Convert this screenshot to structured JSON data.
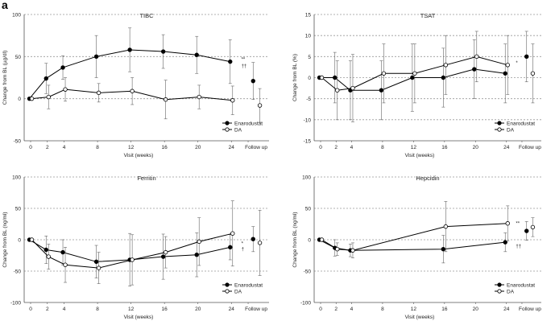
{
  "panel_label": "a",
  "chart_data": [
    {
      "type": "line",
      "title": "TIBC",
      "xlabel": "Visit (weeks)",
      "ylabel": "Change from BL (µg/dl)",
      "ylim": [
        -50,
        100
      ],
      "yticks": [
        -50,
        0,
        50,
        100
      ],
      "grid": "dashed-horizontal",
      "xtick_labels": [
        "0",
        "2",
        "4",
        "8",
        "12",
        "16",
        "20",
        "24",
        "Follow up"
      ],
      "xtick_values": [
        0,
        2,
        4,
        8,
        12,
        16,
        20,
        24,
        26
      ],
      "legend": [
        "Enarodustat",
        "DA"
      ],
      "legend_position": "bottom-right",
      "series": [
        {
          "name": "Enarodustat",
          "marker": "filled",
          "points": [
            [
              0,
              0
            ],
            [
              2,
              24
            ],
            [
              4,
              37
            ],
            [
              8,
              50
            ],
            [
              12,
              58
            ],
            [
              16,
              56
            ],
            [
              20,
              52
            ],
            [
              24,
              44
            ]
          ],
          "errors": [
            0,
            18,
            14,
            25,
            26,
            20,
            22,
            26
          ],
          "followup": {
            "x": 26.6,
            "y": 21,
            "err": 22
          }
        },
        {
          "name": "DA",
          "marker": "open",
          "points": [
            [
              0,
              0
            ],
            [
              2,
              2
            ],
            [
              4,
              11
            ],
            [
              8,
              7
            ],
            [
              12,
              9
            ],
            [
              16,
              -1
            ],
            [
              20,
              2
            ],
            [
              24,
              -2
            ]
          ],
          "errors": [
            0,
            14,
            14,
            11,
            16,
            23,
            14,
            17
          ],
          "followup": {
            "x": 27.4,
            "y": -8,
            "err": 20
          }
        }
      ],
      "annotations": [
        {
          "text": "**",
          "x": 24.8,
          "y": 47
        },
        {
          "text": "††",
          "x": 24.8,
          "y": 39
        }
      ]
    },
    {
      "type": "line",
      "title": "TSAT",
      "xlabel": "Visit (weeks)",
      "ylabel": "Change from BL (%)",
      "ylim": [
        -15,
        15
      ],
      "yticks": [
        -15,
        -10,
        -5,
        0,
        5,
        10,
        15
      ],
      "grid": "dashed-horizontal",
      "xtick_labels": [
        "0",
        "2",
        "4",
        "8",
        "12",
        "16",
        "20",
        "24",
        "Follow up"
      ],
      "xtick_values": [
        0,
        2,
        4,
        8,
        12,
        16,
        20,
        24,
        26
      ],
      "legend": [
        "Enarodustat",
        "DA"
      ],
      "legend_position": "bottom-right",
      "series": [
        {
          "name": "Enarodustat",
          "marker": "filled",
          "points": [
            [
              0,
              0
            ],
            [
              2,
              0
            ],
            [
              4,
              -3
            ],
            [
              8,
              -3
            ],
            [
              12,
              0
            ],
            [
              16,
              0
            ],
            [
              20,
              2
            ],
            [
              24,
              1
            ]
          ],
          "errors": [
            0,
            6,
            7,
            7,
            8,
            7,
            7,
            7
          ],
          "followup": {
            "x": 26.6,
            "y": 5,
            "err": 6
          }
        },
        {
          "name": "DA",
          "marker": "open",
          "points": [
            [
              0,
              0
            ],
            [
              2,
              -3
            ],
            [
              4,
              -2.5
            ],
            [
              8,
              1
            ],
            [
              12,
              1
            ],
            [
              16,
              3
            ],
            [
              20,
              5
            ],
            [
              24,
              3
            ]
          ],
          "errors": [
            0,
            7,
            8,
            7,
            7,
            7,
            6,
            7
          ],
          "followup": {
            "x": 27.4,
            "y": 1,
            "err": 7
          }
        }
      ],
      "annotations": [
        {
          "text": "*",
          "x": 24.8,
          "y": 3.5
        }
      ]
    },
    {
      "type": "line",
      "title": "Ferritin",
      "xlabel": "Visit (weeks)",
      "ylabel": "Change from BL (ng/ml)",
      "ylim": [
        -100,
        100
      ],
      "yticks": [
        -100,
        -50,
        0,
        50,
        100
      ],
      "grid": "dashed-horizontal",
      "xtick_labels": [
        "0",
        "2",
        "4",
        "8",
        "12",
        "16",
        "20",
        "24",
        "Follow up"
      ],
      "xtick_values": [
        0,
        2,
        4,
        8,
        12,
        16,
        20,
        24,
        26
      ],
      "legend": [
        "Enarodustat",
        "DA"
      ],
      "legend_position": "bottom-right",
      "series": [
        {
          "name": "Enarodustat",
          "marker": "filled",
          "points": [
            [
              0,
              0
            ],
            [
              2,
              -16
            ],
            [
              4,
              -20
            ],
            [
              8,
              -35
            ],
            [
              12,
              -32
            ],
            [
              16,
              -27
            ],
            [
              20,
              -24
            ],
            [
              24,
              -12
            ]
          ],
          "errors": [
            0,
            22,
            20,
            26,
            42,
            36,
            35,
            20
          ],
          "followup": {
            "x": 26.6,
            "y": 1,
            "err": 20
          }
        },
        {
          "name": "DA",
          "marker": "open",
          "points": [
            [
              0,
              0
            ],
            [
              2,
              -27
            ],
            [
              4,
              -40
            ],
            [
              8,
              -45
            ],
            [
              12,
              -32
            ],
            [
              16,
              -20
            ],
            [
              20,
              -3
            ],
            [
              24,
              10
            ]
          ],
          "errors": [
            0,
            20,
            28,
            25,
            40,
            25,
            38,
            52
          ],
          "followup": {
            "x": 27.4,
            "y": -5,
            "err": 52
          }
        }
      ],
      "annotations": [
        {
          "text": "*",
          "x": 24.8,
          "y": -6
        },
        {
          "text": "†",
          "x": 24.8,
          "y": -15
        }
      ]
    },
    {
      "type": "line",
      "title": "Hepcidin",
      "xlabel": "Visit (weeks)",
      "ylabel": "Change from BL (ng/ml)",
      "ylim": [
        -100,
        100
      ],
      "yticks": [
        -100,
        -50,
        0,
        50,
        100
      ],
      "grid": "dashed-horizontal",
      "xtick_labels": [
        "0",
        "2",
        "4",
        "8",
        "12",
        "16",
        "20",
        "24",
        "Follow up"
      ],
      "xtick_values": [
        0,
        2,
        4,
        8,
        12,
        16,
        20,
        24,
        26
      ],
      "legend": [
        "Enarodustat",
        "DA"
      ],
      "legend_position": "bottom-right",
      "series": [
        {
          "name": "Enarodustat",
          "marker": "filled",
          "points": [
            [
              0,
              0
            ],
            [
              2,
              -13
            ],
            [
              4,
              -17
            ],
            [
              16,
              -15
            ],
            [
              24,
              -4
            ]
          ],
          "errors": [
            0,
            13,
            10,
            22,
            15
          ],
          "followup": {
            "x": 26.6,
            "y": 14,
            "err": 15
          }
        },
        {
          "name": "DA",
          "marker": "open",
          "points": [
            [
              0,
              0
            ],
            [
              2,
              -15
            ],
            [
              4,
              -17
            ],
            [
              16,
              21
            ],
            [
              24,
              26
            ]
          ],
          "errors": [
            0,
            10,
            12,
            40,
            28
          ],
          "followup": {
            "x": 27.4,
            "y": 20,
            "err": 15
          }
        }
      ],
      "annotations": [
        {
          "text": "**",
          "x": 24.8,
          "y": 26
        },
        {
          "text": "††",
          "x": 24.8,
          "y": -10
        }
      ]
    }
  ]
}
